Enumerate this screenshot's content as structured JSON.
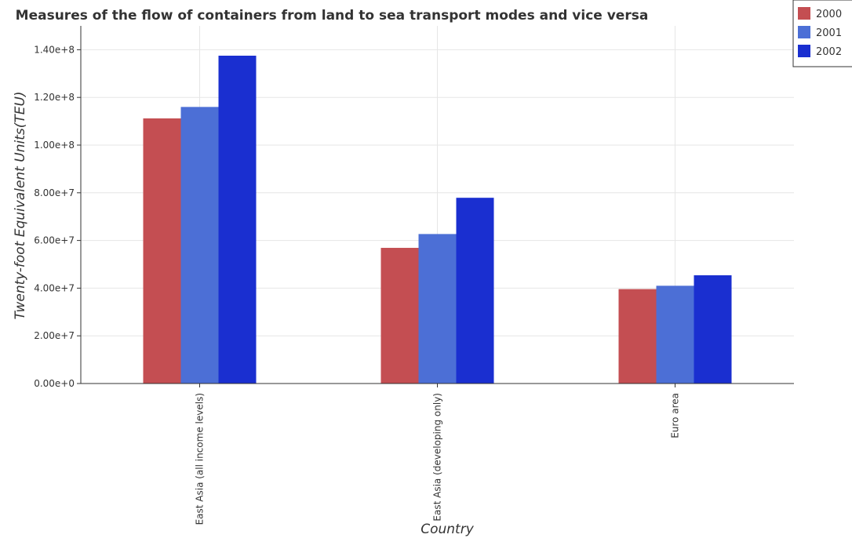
{
  "chart_data": {
    "type": "bar",
    "title": "Measures of the flow of containers from land to sea transport modes and vice versa",
    "xlabel": "Country",
    "ylabel": "Twenty-foot Equivalent Units(TEU)",
    "categories": [
      "East Asia (all income levels)",
      "East Asia (developing only)",
      "Euro area"
    ],
    "series": [
      {
        "name": "2000",
        "color": "#c44e52",
        "values": [
          111200000,
          56900000,
          39600000
        ]
      },
      {
        "name": "2001",
        "color": "#4c6fd6",
        "values": [
          116000000,
          62700000,
          41000000
        ]
      },
      {
        "name": "2002",
        "color": "#1a2fd0",
        "values": [
          137500000,
          77900000,
          45400000
        ]
      }
    ],
    "ylim": [
      0,
      150000000
    ],
    "yticks": [
      0,
      20000000,
      40000000,
      60000000,
      80000000,
      100000000,
      120000000,
      140000000
    ],
    "ytick_labels": [
      "0.00e+0",
      "2.00e+7",
      "4.00e+7",
      "6.00e+7",
      "8.00e+7",
      "1.00e+8",
      "1.20e+8",
      "1.40e+8"
    ],
    "grid": true,
    "legend_position": "top-right"
  }
}
